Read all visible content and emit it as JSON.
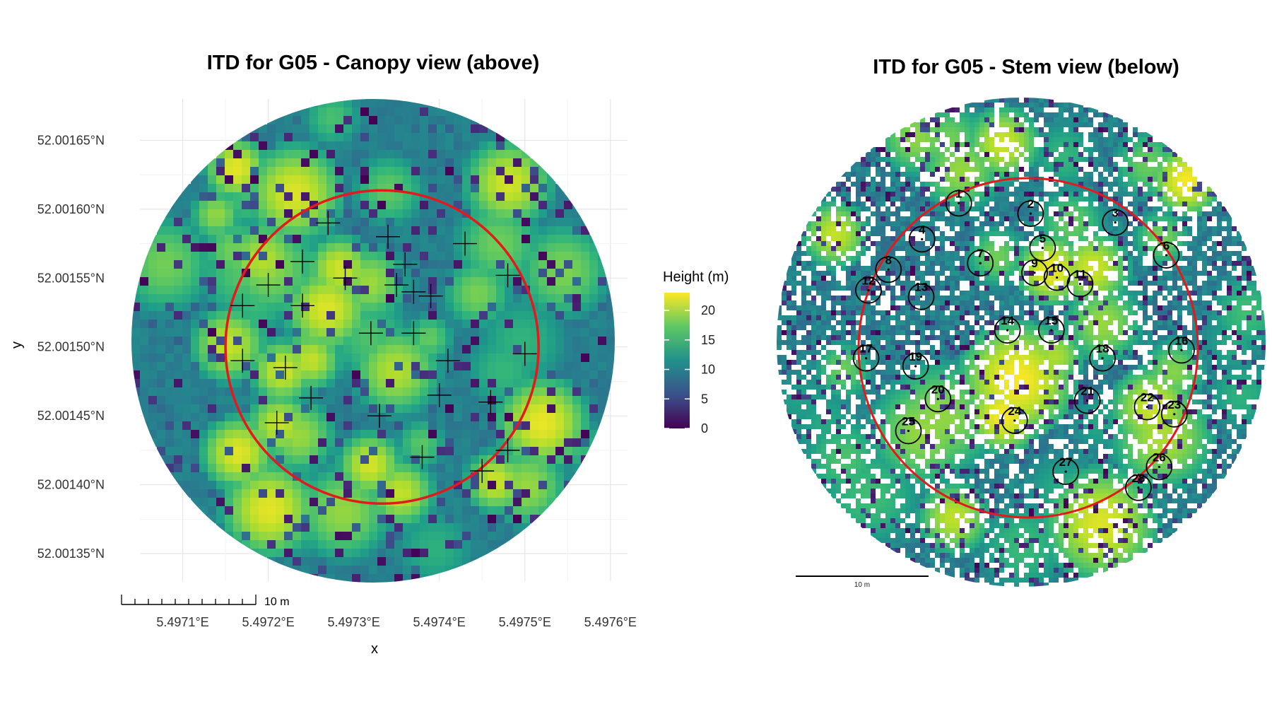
{
  "chart_data": [
    {
      "type": "heatmap",
      "title": "ITD for G05 - Canopy view (above)",
      "xlabel": "x",
      "ylabel": "y",
      "x_ticks": [
        "5.4971°E",
        "5.4972°E",
        "5.4973°E",
        "5.4974°E",
        "5.4975°E",
        "5.4976°E"
      ],
      "y_ticks": [
        "52.00165°N",
        "52.00160°N",
        "52.00155°N",
        "52.00150°N",
        "52.00145°N",
        "52.00140°N",
        "52.00135°N"
      ],
      "xlim": [
        5.49705,
        5.49762
      ],
      "ylim": [
        52.00133,
        52.00168
      ],
      "grid": true,
      "legend": {
        "title": "Height (m)",
        "placement": "right",
        "range": [
          0,
          23
        ],
        "ticks": [
          "20",
          "15",
          "10",
          "5",
          "0"
        ],
        "tick_values": [
          20,
          15,
          10,
          5,
          0
        ],
        "colors": [
          "#440154",
          "#3b528b",
          "#21908c",
          "#5dc863",
          "#fde725"
        ]
      },
      "plot_circle": {
        "center": [
          5.497333,
          52.0015
        ],
        "radius_deg_lon": 0.000183,
        "color": "#e31a1c"
      },
      "scalebar_label": "10 m",
      "tree_tops": [
        {
          "x": 5.49727,
          "y": 52.00159
        },
        {
          "x": 5.49734,
          "y": 52.00158
        },
        {
          "x": 5.49743,
          "y": 52.001575
        },
        {
          "x": 5.49724,
          "y": 52.001562
        },
        {
          "x": 5.49736,
          "y": 52.00156
        },
        {
          "x": 5.49748,
          "y": 52.001552
        },
        {
          "x": 5.49729,
          "y": 52.00155
        },
        {
          "x": 5.49735,
          "y": 52.001545
        },
        {
          "x": 5.49737,
          "y": 52.00154
        },
        {
          "x": 5.49739,
          "y": 52.001537
        },
        {
          "x": 5.4972,
          "y": 52.001545
        },
        {
          "x": 5.49717,
          "y": 52.00153
        },
        {
          "x": 5.49724,
          "y": 52.00153
        },
        {
          "x": 5.49732,
          "y": 52.00151
        },
        {
          "x": 5.49737,
          "y": 52.00151
        },
        {
          "x": 5.49717,
          "y": 52.00149
        },
        {
          "x": 5.49722,
          "y": 52.001485
        },
        {
          "x": 5.49741,
          "y": 52.00149
        },
        {
          "x": 5.4975,
          "y": 52.001495
        },
        {
          "x": 5.49725,
          "y": 52.001463
        },
        {
          "x": 5.4974,
          "y": 52.001465
        },
        {
          "x": 5.49746,
          "y": 52.00146
        },
        {
          "x": 5.49721,
          "y": 52.001445
        },
        {
          "x": 5.49733,
          "y": 52.00145
        },
        {
          "x": 5.49738,
          "y": 52.00142
        },
        {
          "x": 5.49748,
          "y": 52.001425
        },
        {
          "x": 5.49745,
          "y": 52.00141
        }
      ]
    },
    {
      "type": "scatter",
      "title": "ITD for G05 - Stem view (below)",
      "scalebar_label": "10 m",
      "plot_circle": {
        "color": "#e31a1c"
      },
      "stems": [
        {
          "label": "1",
          "x": -8.7,
          "y": 18.1
        },
        {
          "label": "2",
          "x": 0.3,
          "y": 16.8
        },
        {
          "label": "3",
          "x": 10.9,
          "y": 15.7
        },
        {
          "label": "4",
          "x": -13.3,
          "y": 13.6
        },
        {
          "label": "5",
          "x": 1.8,
          "y": 12.5
        },
        {
          "label": "6",
          "x": 17.3,
          "y": 11.6
        },
        {
          "label": "7",
          "x": -6.0,
          "y": 10.6
        },
        {
          "label": "8",
          "x": -17.5,
          "y": 9.8
        },
        {
          "label": "9",
          "x": 0.8,
          "y": 9.4
        },
        {
          "label": "10",
          "x": 3.6,
          "y": 8.8
        },
        {
          "label": "11",
          "x": 6.5,
          "y": 8.0
        },
        {
          "label": "12",
          "x": -20.0,
          "y": 7.2
        },
        {
          "label": "13",
          "x": -13.4,
          "y": 6.4
        },
        {
          "label": "14",
          "x": -2.6,
          "y": 2.2
        },
        {
          "label": "15",
          "x": 2.9,
          "y": 2.2
        },
        {
          "label": "16",
          "x": 19.2,
          "y": -0.3
        },
        {
          "label": "17",
          "x": -20.3,
          "y": -1.3
        },
        {
          "label": "18",
          "x": 9.3,
          "y": -1.3
        },
        {
          "label": "19",
          "x": -14.1,
          "y": -2.3
        },
        {
          "label": "20",
          "x": -11.3,
          "y": -6.4
        },
        {
          "label": "21",
          "x": 7.4,
          "y": -6.6
        },
        {
          "label": "22",
          "x": 14.9,
          "y": -7.4
        },
        {
          "label": "23",
          "x": 18.3,
          "y": -8.3
        },
        {
          "label": "24",
          "x": -1.7,
          "y": -9.1
        },
        {
          "label": "25",
          "x": -15.0,
          "y": -10.4
        },
        {
          "label": "26",
          "x": 16.4,
          "y": -14.9
        },
        {
          "label": "27",
          "x": 4.7,
          "y": -15.5
        },
        {
          "label": "28",
          "x": 13.8,
          "y": -17.5
        }
      ]
    }
  ]
}
